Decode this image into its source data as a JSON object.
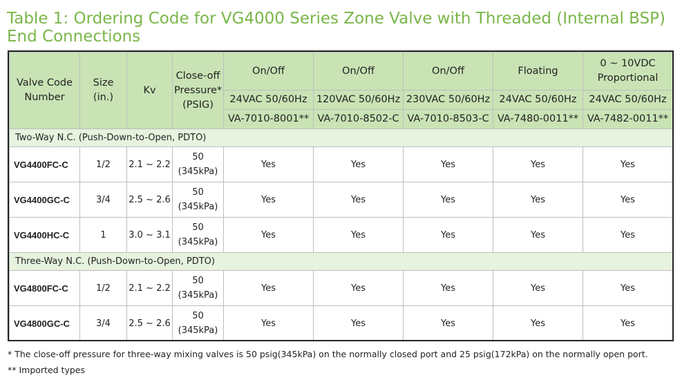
{
  "title": "Table 1: Ordering Code for VG4000 Series Zone Valve with Threaded (Internal BSP) End Connections",
  "headers": {
    "valve_code": "Valve Code Number",
    "size": "Size (in.)",
    "kv": "Kv",
    "pressure": "Close-off Pressure* (PSIG)"
  },
  "actuators": [
    {
      "type": "On/Off",
      "voltage": "24VAC 50/60Hz",
      "model": "VA-7010-8001**"
    },
    {
      "type": "On/Off",
      "voltage": "120VAC 50/60Hz",
      "model": "VA-7010-8502-C"
    },
    {
      "type": "On/Off",
      "voltage": "230VAC 50/60Hz",
      "model": "VA-7010-8503-C"
    },
    {
      "type": "Floating",
      "voltage": "24VAC 50/60Hz",
      "model": "VA-7480-0011**"
    },
    {
      "type": "0 ~ 10VDC Proportional",
      "voltage": "24VAC 50/60Hz",
      "model": "VA-7482-0011**"
    }
  ],
  "sections": [
    {
      "label": "Two-Way N.C. (Push-Down-to-Open, PDTO)",
      "rows": [
        {
          "code": "VG4400FC-C",
          "size": "1/2",
          "kv": "2.1 ~ 2.2",
          "psig": "50",
          "kpa": "(345kPa)",
          "a1": "Yes",
          "a2": "Yes",
          "a3": "Yes",
          "a4": "Yes",
          "a5": "Yes"
        },
        {
          "code": "VG4400GC-C",
          "size": "3/4",
          "kv": "2.5 ~ 2.6",
          "psig": "50",
          "kpa": "(345kPa)",
          "a1": "Yes",
          "a2": "Yes",
          "a3": "Yes",
          "a4": "Yes",
          "a5": "Yes"
        },
        {
          "code": "VG4400HC-C",
          "size": "1",
          "kv": "3.0 ~ 3.1",
          "psig": "50",
          "kpa": "(345kPa)",
          "a1": "Yes",
          "a2": "Yes",
          "a3": "Yes",
          "a4": "Yes",
          "a5": "Yes"
        }
      ]
    },
    {
      "label": "Three-Way N.C. (Push-Down-to-Open, PDTO)",
      "rows": [
        {
          "code": "VG4800FC-C",
          "size": "1/2",
          "kv": "2.1 ~ 2.2",
          "psig": "50",
          "kpa": "(345kPa)",
          "a1": "Yes",
          "a2": "Yes",
          "a3": "Yes",
          "a4": "Yes",
          "a5": "Yes"
        },
        {
          "code": "VG4800GC-C",
          "size": "3/4",
          "kv": "2.5 ~ 2.6",
          "psig": "50",
          "kpa": "(345kPa)",
          "a1": "Yes",
          "a2": "Yes",
          "a3": "Yes",
          "a4": "Yes",
          "a5": "Yes"
        }
      ]
    }
  ],
  "footnotes": [
    "* The close-off pressure for three-way mixing valves is 50 psig(345kPa) on the normally closed port and 25 psig(172kPa) on the normally open port.",
    "** Imported types"
  ]
}
